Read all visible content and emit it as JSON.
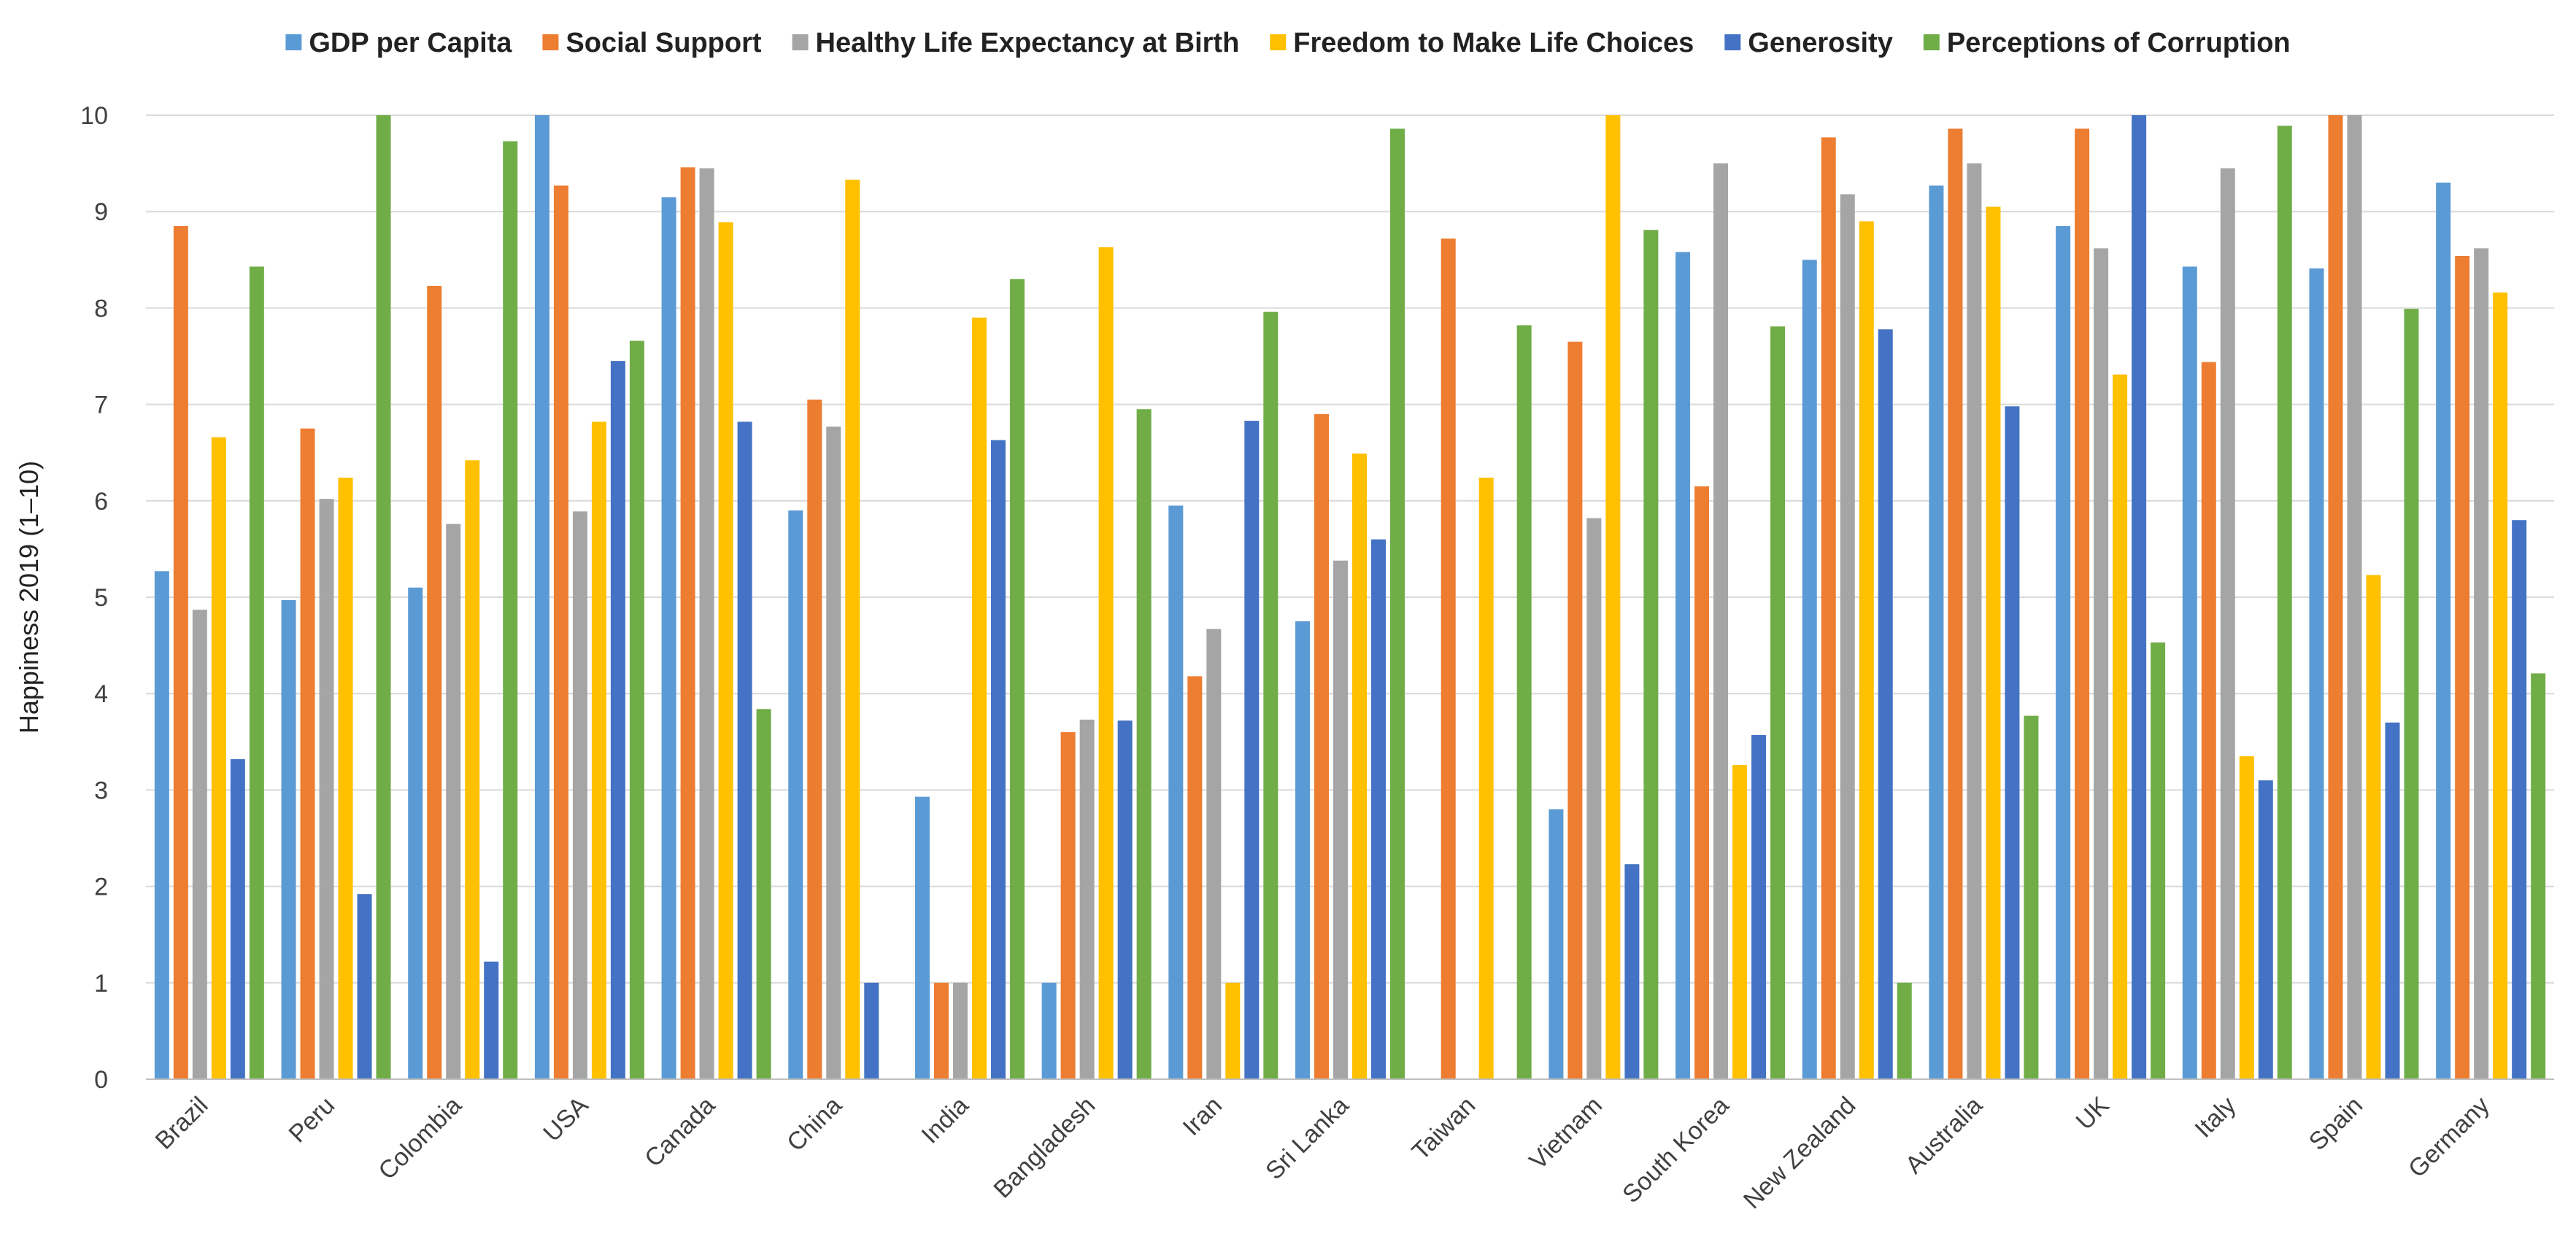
{
  "chart_data": {
    "type": "bar",
    "title": "",
    "xlabel": "",
    "ylabel": "Happiness 2019 (1–10)",
    "ylim": [
      0,
      10
    ],
    "yticks": [
      "0",
      "1",
      "2",
      "3",
      "4",
      "5",
      "6",
      "7",
      "8",
      "9",
      "10"
    ],
    "grid": true,
    "legend_position": "top",
    "categories": [
      "Brazil",
      "Peru",
      "Colombia",
      "USA",
      "Canada",
      "China",
      "India",
      "Bangladesh",
      "Iran",
      "Sri Lanka",
      "Taiwan",
      "Vietnam",
      "South Korea",
      "New Zealand",
      "Australia",
      "UK",
      "Italy",
      "Spain",
      "Germany"
    ],
    "series": [
      {
        "name": "GDP per Capita",
        "color": "#5b9bd5",
        "values": [
          5.27,
          4.97,
          5.1,
          10.0,
          9.15,
          5.9,
          2.93,
          1.0,
          5.95,
          4.75,
          0,
          2.8,
          8.58,
          8.5,
          9.27,
          8.85,
          8.43,
          8.41,
          9.3
        ]
      },
      {
        "name": "Social Support",
        "color": "#ed7d31",
        "values": [
          8.85,
          6.75,
          8.23,
          9.27,
          9.46,
          7.05,
          1.0,
          3.6,
          4.18,
          6.9,
          8.72,
          7.65,
          6.15,
          9.77,
          9.86,
          9.86,
          7.44,
          10.0,
          8.54
        ]
      },
      {
        "name": "Healthy Life Expectancy at Birth",
        "color": "#a5a5a5",
        "values": [
          4.87,
          6.02,
          5.76,
          5.89,
          9.45,
          6.77,
          1.0,
          3.73,
          4.67,
          5.38,
          0,
          5.82,
          9.5,
          9.18,
          9.5,
          8.62,
          9.45,
          10.0,
          8.62
        ]
      },
      {
        "name": "Freedom to Make Life Choices",
        "color": "#ffc000",
        "values": [
          6.66,
          6.24,
          6.42,
          6.82,
          8.89,
          9.33,
          7.9,
          8.63,
          1.0,
          6.49,
          6.24,
          10.0,
          3.26,
          8.9,
          9.05,
          7.31,
          3.35,
          5.23,
          8.16
        ]
      },
      {
        "name": "Generosity",
        "color": "#4472c4",
        "values": [
          3.32,
          1.92,
          1.22,
          7.45,
          6.82,
          1.0,
          6.63,
          3.72,
          6.83,
          5.6,
          0,
          2.23,
          3.57,
          7.78,
          6.98,
          10.0,
          3.1,
          3.7,
          5.8
        ]
      },
      {
        "name": "Perceptions of Corruption",
        "color": "#70ad47",
        "values": [
          8.43,
          10.0,
          9.73,
          7.66,
          3.84,
          0,
          8.3,
          6.95,
          7.96,
          9.86,
          7.82,
          8.81,
          7.81,
          1.0,
          3.77,
          4.53,
          9.89,
          7.99,
          4.21
        ]
      }
    ]
  }
}
